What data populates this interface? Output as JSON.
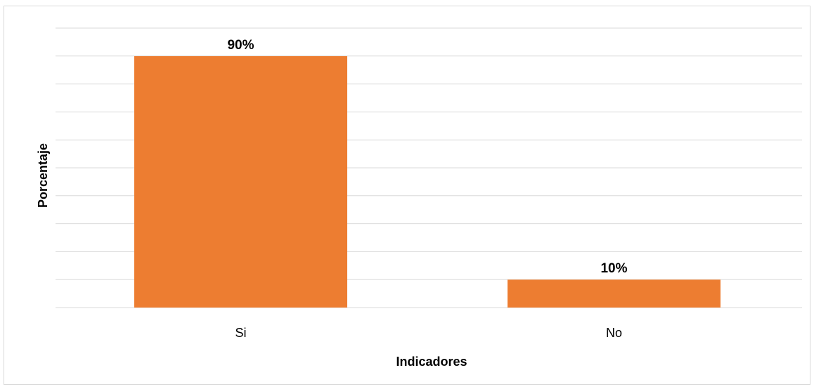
{
  "chart_data": {
    "type": "bar",
    "categories": [
      "Si",
      "No"
    ],
    "values": [
      90,
      10
    ],
    "data_labels": [
      "90%",
      "10%"
    ],
    "xlabel": "Indicadores",
    "ylabel": "Porcentaje",
    "ylim": [
      0,
      90
    ],
    "grid": true,
    "y_tick_labels_shown": false,
    "bar_color": "#ED7D31",
    "grid_color": "#D9D9D9"
  }
}
